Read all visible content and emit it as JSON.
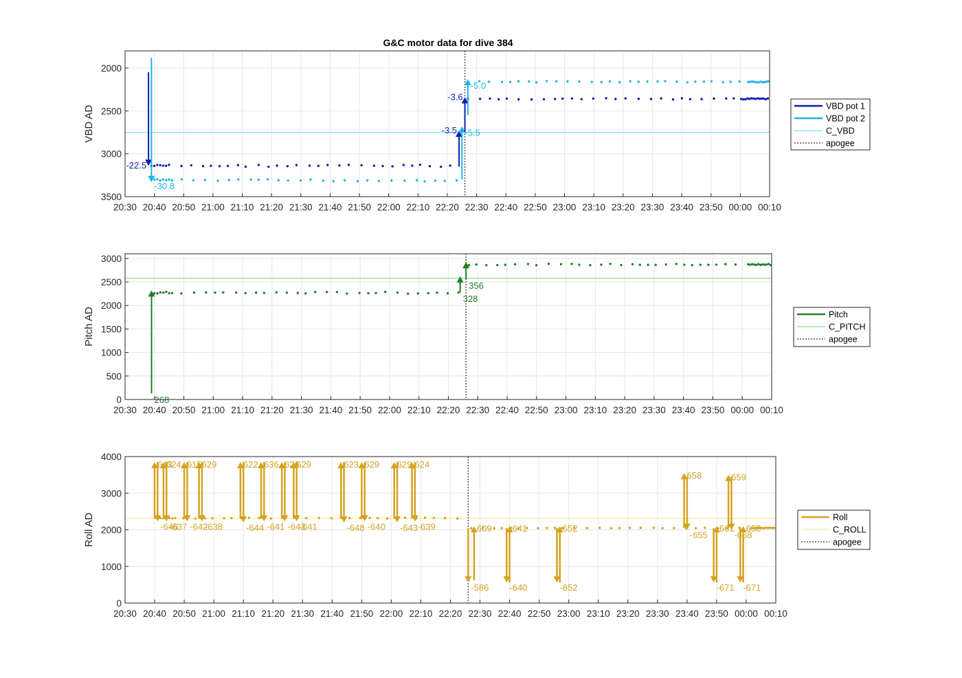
{
  "title": "G&C motor data for dive 384",
  "colors": {
    "vbd1": "#0a1eb4",
    "vbd2": "#1eb4e6",
    "c_vbd": "#7ee3f0",
    "pitch": "#1f7f24",
    "c_pitch": "#7fdf7f",
    "roll": "#d4a21f",
    "c_roll": "#f5ec8c",
    "apogee": "#555555",
    "grid": "#e6e6e6"
  },
  "chart_data": [
    {
      "type": "scatter",
      "panel": "vbd",
      "ylabel": "VBD AD",
      "y_reversed": true,
      "ylim": [
        1800,
        3500
      ],
      "yticks": [
        2000,
        2500,
        3000,
        3500
      ],
      "xlim": [
        "20:30",
        "00:10"
      ],
      "xtick_labels": [
        "20:30",
        "20:40",
        "20:50",
        "21:00",
        "21:10",
        "21:20",
        "21:30",
        "21:40",
        "21:50",
        "22:00",
        "22:10",
        "22:20",
        "22:30",
        "22:40",
        "22:50",
        "23:00",
        "23:10",
        "23:20",
        "23:30",
        "23:40",
        "23:50",
        "00:00",
        "00:10"
      ],
      "grid": true,
      "legend_placement": "outside-right",
      "legend": [
        "VBD pot 1",
        "VBD pot 2",
        "C_VBD",
        "apogee"
      ],
      "apogee_time": "22:26",
      "reference_lines": [
        {
          "name": "C_VBD",
          "y": 2750
        }
      ],
      "series": [
        {
          "name": "VBD pot 1",
          "descent_level": 3140,
          "ascent_level": 2360
        },
        {
          "name": "VBD pot 2",
          "descent_level": 3310,
          "ascent_level": 2160
        }
      ],
      "arrows": [
        {
          "series": "VBD pot 1",
          "time": "20:38",
          "from": 2050,
          "to": 3140,
          "label": "-22.5"
        },
        {
          "series": "VBD pot 2",
          "time": "20:39",
          "from": 1880,
          "to": 3330,
          "label": "-30.8"
        },
        {
          "series": "VBD pot 1",
          "time": "22:24",
          "from": 3150,
          "to": 2730,
          "label": "-3.5"
        },
        {
          "series": "VBD pot 2",
          "time": "22:25",
          "from": 3300,
          "to": 2680,
          "label": "-5.5"
        },
        {
          "series": "VBD pot 1",
          "time": "22:26",
          "from": 2750,
          "to": 2340,
          "label": "-3.6"
        },
        {
          "series": "VBD pot 2",
          "time": "22:27",
          "from": 2550,
          "to": 2130,
          "label": "-5.0"
        }
      ]
    },
    {
      "type": "scatter",
      "panel": "pitch",
      "ylabel": "Pitch AD",
      "ylim": [
        0,
        3100
      ],
      "yticks": [
        0,
        500,
        1000,
        1500,
        2000,
        2500,
        3000
      ],
      "xlim": [
        "20:30",
        "00:10"
      ],
      "xtick_labels": [
        "20:30",
        "20:40",
        "20:50",
        "21:00",
        "21:10",
        "21:20",
        "21:30",
        "21:40",
        "21:50",
        "22:00",
        "22:10",
        "22:20",
        "22:30",
        "22:40",
        "22:50",
        "23:00",
        "23:10",
        "23:20",
        "23:30",
        "23:40",
        "23:50",
        "00:00",
        "00:10"
      ],
      "grid": true,
      "legend_placement": "outside-right",
      "legend": [
        "Pitch",
        "C_PITCH",
        "apogee"
      ],
      "apogee_time": "22:26",
      "reference_lines": [
        {
          "name": "C_PITCH",
          "y": 2580
        }
      ],
      "series": [
        {
          "name": "Pitch",
          "descent_level": 2270,
          "ascent_level": 2870
        }
      ],
      "arrows": [
        {
          "series": "Pitch",
          "time": "20:39",
          "from": 130,
          "to": 2320,
          "label": "268"
        },
        {
          "series": "Pitch",
          "time": "22:24",
          "from": 2280,
          "to": 2620,
          "label": "328"
        },
        {
          "series": "Pitch",
          "time": "22:26",
          "from": 2560,
          "to": 2920,
          "label": "356"
        }
      ]
    },
    {
      "type": "scatter",
      "panel": "roll",
      "ylabel": "Roll AD",
      "ylim": [
        0,
        4000
      ],
      "yticks": [
        0,
        1000,
        2000,
        3000,
        4000
      ],
      "xlim": [
        "20:30",
        "00:10"
      ],
      "xtick_labels": [
        "20:30",
        "20:40",
        "20:50",
        "21:00",
        "21:10",
        "21:20",
        "21:30",
        "21:40",
        "21:50",
        "22:00",
        "22:10",
        "22:20",
        "22:30",
        "22:40",
        "22:50",
        "23:00",
        "23:10",
        "23:20",
        "23:30",
        "23:40",
        "23:50",
        "00:00",
        "00:10"
      ],
      "grid": true,
      "legend_placement": "outside-right",
      "legend": [
        "Roll",
        "C_ROLL",
        "apogee"
      ],
      "apogee_time": "22:26",
      "reference_lines": [
        {
          "name": "C_ROLL",
          "y": 2310
        }
      ],
      "series": [
        {
          "name": "Roll",
          "descent_level": 2320,
          "ascent_level": 2050
        }
      ],
      "arrows": [
        {
          "series": "Roll",
          "time": "20:40",
          "from": 2300,
          "to": 3850,
          "label": "643"
        },
        {
          "series": "Roll",
          "time": "20:41",
          "from": 3850,
          "to": 2230,
          "label": "-646"
        },
        {
          "series": "Roll",
          "time": "20:43",
          "from": 2300,
          "to": 3850,
          "label": "624"
        },
        {
          "series": "Roll",
          "time": "20:44",
          "from": 3850,
          "to": 2230,
          "label": "-637"
        },
        {
          "series": "Roll",
          "time": "20:50",
          "from": 2300,
          "to": 3850,
          "label": "615"
        },
        {
          "series": "Roll",
          "time": "20:51",
          "from": 3850,
          "to": 2230,
          "label": "-642"
        },
        {
          "series": "Roll",
          "time": "20:55",
          "from": 2300,
          "to": 3850,
          "label": "629"
        },
        {
          "series": "Roll",
          "time": "20:56",
          "from": 3850,
          "to": 2230,
          "label": "-638"
        },
        {
          "series": "Roll",
          "time": "21:09",
          "from": 2300,
          "to": 3850,
          "label": "622"
        },
        {
          "series": "Roll",
          "time": "21:10",
          "from": 3850,
          "to": 2200,
          "label": "-644"
        },
        {
          "series": "Roll",
          "time": "21:16",
          "from": 2300,
          "to": 3850,
          "label": "636"
        },
        {
          "series": "Roll",
          "time": "21:17",
          "from": 3850,
          "to": 2230,
          "label": "-641"
        },
        {
          "series": "Roll",
          "time": "21:23",
          "from": 2300,
          "to": 3850,
          "label": "626"
        },
        {
          "series": "Roll",
          "time": "21:24",
          "from": 3850,
          "to": 2230,
          "label": "-643"
        },
        {
          "series": "Roll",
          "time": "21:27",
          "from": 2300,
          "to": 3850,
          "label": "629"
        },
        {
          "series": "Roll",
          "time": "21:28",
          "from": 3850,
          "to": 2230,
          "label": "-641"
        },
        {
          "series": "Roll",
          "time": "21:43",
          "from": 2300,
          "to": 3850,
          "label": "623"
        },
        {
          "series": "Roll",
          "time": "21:44",
          "from": 3850,
          "to": 2200,
          "label": "-648"
        },
        {
          "series": "Roll",
          "time": "21:50",
          "from": 2300,
          "to": 3850,
          "label": "629"
        },
        {
          "series": "Roll",
          "time": "21:51",
          "from": 3850,
          "to": 2230,
          "label": "-640"
        },
        {
          "series": "Roll",
          "time": "22:01",
          "from": 2300,
          "to": 3850,
          "label": "629"
        },
        {
          "series": "Roll",
          "time": "22:02",
          "from": 3850,
          "to": 2200,
          "label": "-643"
        },
        {
          "series": "Roll",
          "time": "22:07",
          "from": 2300,
          "to": 3850,
          "label": "624"
        },
        {
          "series": "Roll",
          "time": "22:08",
          "from": 3850,
          "to": 2230,
          "label": "-639"
        },
        {
          "series": "Roll",
          "time": "22:26",
          "from": 2050,
          "to": 560,
          "label": "-586"
        },
        {
          "series": "Roll",
          "time": "22:28",
          "from": 620,
          "to": 2100,
          "label": "609"
        },
        {
          "series": "Roll",
          "time": "22:39",
          "from": 2050,
          "to": 560,
          "label": "-640"
        },
        {
          "series": "Roll",
          "time": "22:40",
          "from": 560,
          "to": 2100,
          "label": "641"
        },
        {
          "series": "Roll",
          "time": "22:56",
          "from": 2050,
          "to": 560,
          "label": "-652"
        },
        {
          "series": "Roll",
          "time": "22:57",
          "from": 560,
          "to": 2100,
          "label": "652"
        },
        {
          "series": "Roll",
          "time": "23:39",
          "from": 2050,
          "to": 3550,
          "label": "658"
        },
        {
          "series": "Roll",
          "time": "23:40",
          "from": 3450,
          "to": 2000,
          "label": "-655"
        },
        {
          "series": "Roll",
          "time": "23:49",
          "from": 2050,
          "to": 560,
          "label": "-671"
        },
        {
          "series": "Roll",
          "time": "23:50",
          "from": 560,
          "to": 2100,
          "label": "661"
        },
        {
          "series": "Roll",
          "time": "23:54",
          "from": 2050,
          "to": 3500,
          "label": "659"
        },
        {
          "series": "Roll",
          "time": "23:55",
          "from": 3450,
          "to": 2000,
          "label": "-658"
        },
        {
          "series": "Roll",
          "time": "23:58",
          "from": 2050,
          "to": 560,
          "label": "-671"
        },
        {
          "series": "Roll",
          "time": "23:59",
          "from": 560,
          "to": 2100,
          "label": "658"
        }
      ]
    }
  ]
}
